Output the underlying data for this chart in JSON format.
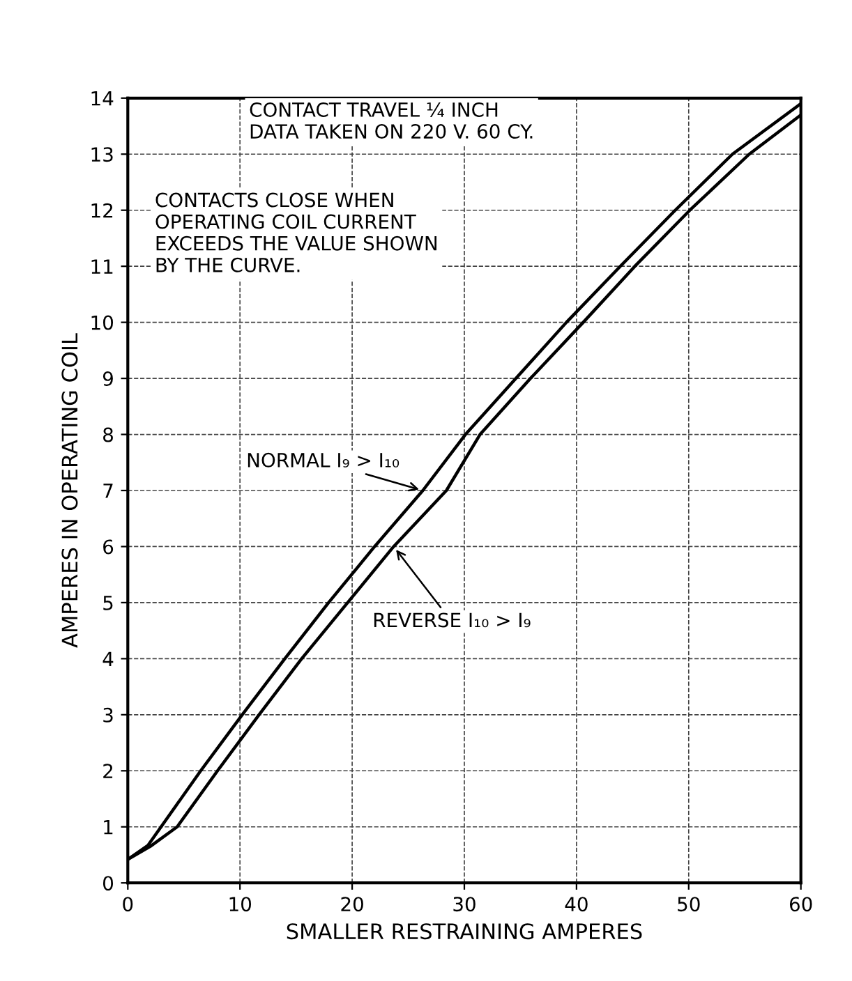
{
  "chart_data": {
    "type": "line",
    "xlabel": "SMALLER RESTRAINING AMPERES",
    "ylabel": "AMPERES IN OPERATING COIL",
    "xlim": [
      0,
      60
    ],
    "ylim": [
      0,
      14
    ],
    "xticks": [
      0,
      10,
      20,
      30,
      40,
      50,
      60
    ],
    "yticks": [
      0,
      1,
      2,
      3,
      4,
      5,
      6,
      7,
      8,
      9,
      10,
      11,
      12,
      13,
      14
    ],
    "grid": true,
    "legend": false,
    "marker": "none",
    "line_style": "solid",
    "annotations": [
      "CONTACT TRAVEL ¼ INCH\nDATA TAKEN ON 220 V. 60 CY.",
      "CONTACTS CLOSE WHEN\nOPERATING COIL CURRENT\nEXCEEDS THE VALUE SHOWN\nBY THE CURVE."
    ],
    "series": [
      {
        "name": "NORMAL I₉ > I₁₀",
        "color": "#000000",
        "x": [
          0,
          1.8,
          6.5,
          10.2,
          14.0,
          17.9,
          22.0,
          26.3,
          30.1,
          34.6,
          39.1,
          43.9,
          48.8,
          53.9,
          60
        ],
        "values": [
          0.42,
          0.67,
          2,
          3,
          4,
          5,
          6,
          7,
          8,
          9,
          10,
          11,
          12,
          13,
          13.9
        ]
      },
      {
        "name": "REVERSE I₁₀ > I₉",
        "color": "#000000",
        "x": [
          0,
          2,
          4.4,
          8.0,
          11.7,
          15.5,
          19.6,
          23.7,
          28.4,
          31.4,
          35.9,
          40.6,
          45.2,
          50.1,
          55.4,
          60
        ],
        "values": [
          0.42,
          0.65,
          1,
          2,
          3,
          4,
          5,
          6,
          7,
          8,
          9,
          10,
          11,
          12,
          13,
          13.7
        ]
      }
    ]
  }
}
